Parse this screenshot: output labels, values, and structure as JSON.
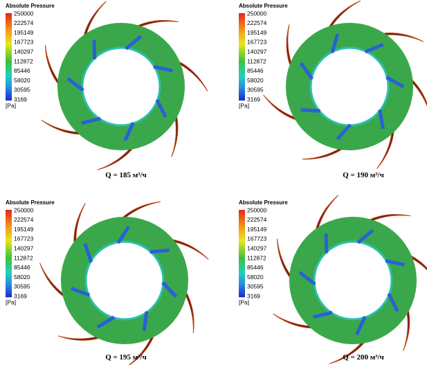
{
  "panels": [
    {
      "legend_title": "Absolute Pressure",
      "legend_labels": [
        "250000",
        "222574",
        "195149",
        "167723",
        "140297",
        "112872",
        "85446",
        "58020",
        "30595",
        "3169"
      ],
      "unit": "[Pa]",
      "caption": "Q = 185 м³/ч"
    },
    {
      "legend_title": "Absolute Pressure",
      "legend_labels": [
        "250000",
        "222574",
        "195149",
        "167723",
        "140297",
        "112872",
        "85446",
        "58020",
        "30595",
        "3169"
      ],
      "unit": "[Pa]",
      "caption": "Q = 190 м³/ч"
    },
    {
      "legend_title": "Absolute Pressure",
      "legend_labels": [
        "250000",
        "222574",
        "195149",
        "167723",
        "140297",
        "112872",
        "85446",
        "58020",
        "30595",
        "3169"
      ],
      "unit": "[Pa]",
      "caption": "Q = 195 м³/ч"
    },
    {
      "legend_title": "Absolute Pressure",
      "legend_labels": [
        "250000",
        "222574",
        "195149",
        "167723",
        "140297",
        "112872",
        "85446",
        "58020",
        "30595",
        "3169"
      ],
      "unit": "[Pa]",
      "caption": "Q = 200 м³/ч"
    }
  ]
}
